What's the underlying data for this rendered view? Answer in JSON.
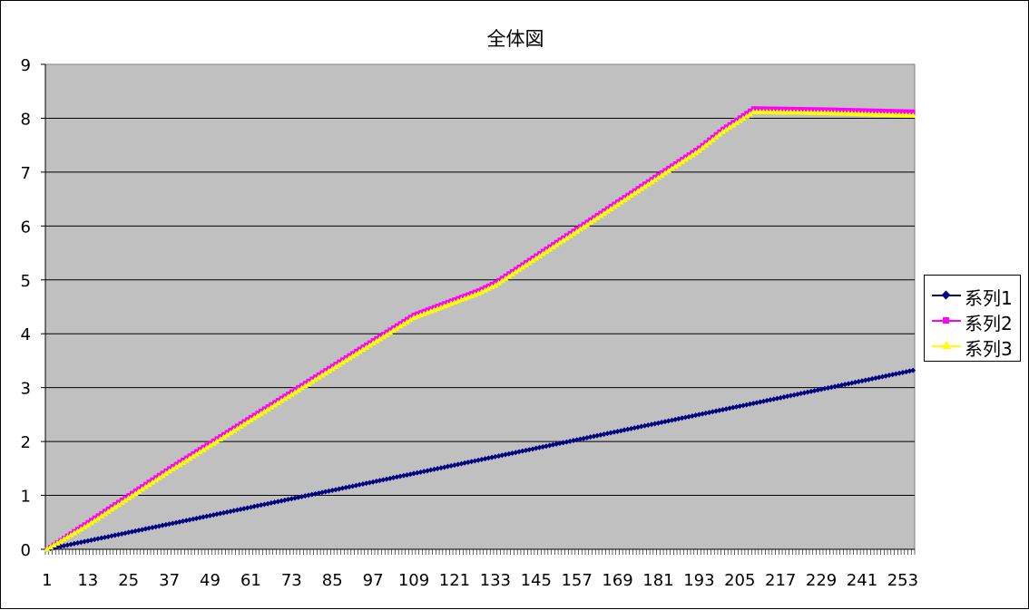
{
  "chart_data": {
    "type": "line",
    "title": "全体図",
    "xlabel": "",
    "ylabel": "",
    "ylim": [
      0,
      9
    ],
    "yticks": [
      0,
      1,
      2,
      3,
      4,
      5,
      6,
      7,
      8,
      9
    ],
    "x_range": [
      1,
      256
    ],
    "xtick_labels": [
      "1",
      "13",
      "25",
      "37",
      "49",
      "61",
      "73",
      "85",
      "97",
      "109",
      "121",
      "133",
      "145",
      "157",
      "169",
      "181",
      "193",
      "205",
      "217",
      "229",
      "241",
      "253"
    ],
    "grid": "horizontal",
    "plot_background": "#c0c0c0",
    "legend_position": "right",
    "series": [
      {
        "name": "系列1",
        "color": "#000080",
        "marker": "diamond",
        "points": [
          [
            1,
            0.0
          ],
          [
            256,
            3.32
          ]
        ]
      },
      {
        "name": "系列2",
        "color": "#ff00ff",
        "marker": "square",
        "points": [
          [
            1,
            0.0
          ],
          [
            13,
            0.5
          ],
          [
            37,
            1.5
          ],
          [
            61,
            2.45
          ],
          [
            85,
            3.4
          ],
          [
            109,
            4.35
          ],
          [
            128,
            4.8
          ],
          [
            133,
            4.95
          ],
          [
            157,
            5.95
          ],
          [
            181,
            6.95
          ],
          [
            193,
            7.45
          ],
          [
            200,
            7.8
          ],
          [
            209,
            8.18
          ],
          [
            230,
            8.16
          ],
          [
            256,
            8.12
          ]
        ]
      },
      {
        "name": "系列3",
        "color": "#ffff00",
        "marker": "triangle",
        "points": [
          [
            1,
            0.0
          ],
          [
            13,
            0.45
          ],
          [
            37,
            1.45
          ],
          [
            61,
            2.4
          ],
          [
            85,
            3.35
          ],
          [
            109,
            4.3
          ],
          [
            128,
            4.75
          ],
          [
            133,
            4.9
          ],
          [
            157,
            5.9
          ],
          [
            181,
            6.9
          ],
          [
            193,
            7.4
          ],
          [
            200,
            7.75
          ],
          [
            209,
            8.12
          ],
          [
            230,
            8.1
          ],
          [
            256,
            8.05
          ]
        ]
      }
    ]
  }
}
